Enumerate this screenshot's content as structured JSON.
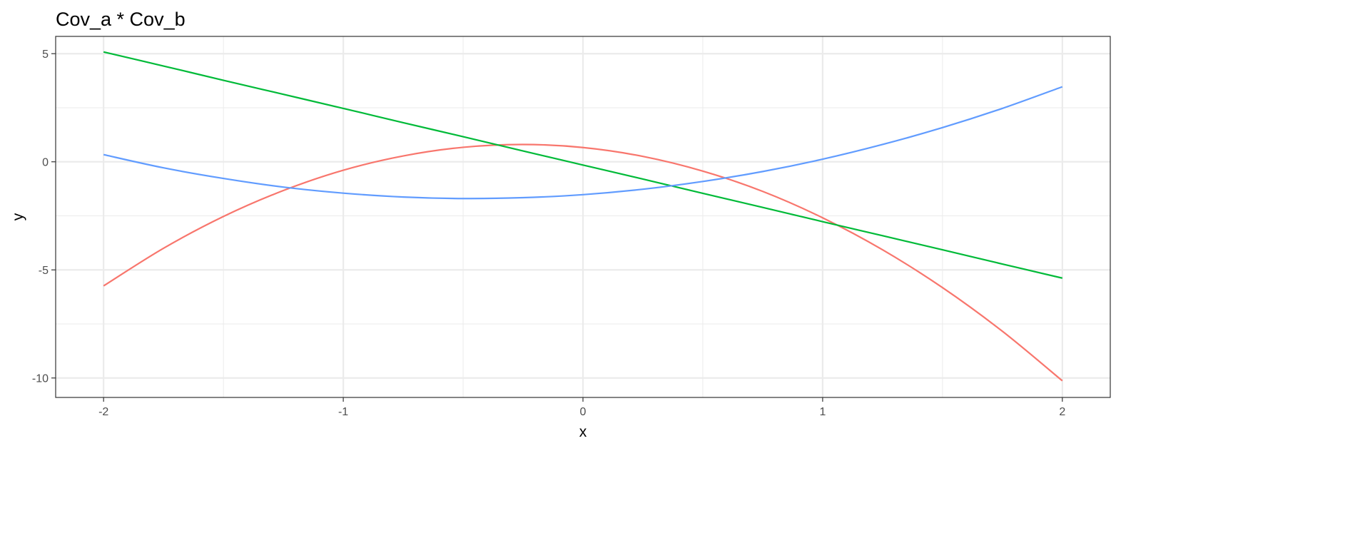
{
  "chart_data": {
    "type": "line",
    "title": "Cov_a * Cov_b",
    "xlabel": "x",
    "ylabel": "y",
    "xlim": [
      -2.2,
      2.2
    ],
    "ylim": [
      -10.9,
      5.8
    ],
    "x_ticks": [
      -2,
      -1,
      0,
      1,
      2
    ],
    "y_ticks": [
      5,
      0,
      -5,
      -10
    ],
    "x_tick_labels": [
      "-2",
      "-1",
      "0",
      "1",
      "2"
    ],
    "y_tick_labels": [
      "5",
      "0",
      "-5",
      "-10"
    ],
    "grid": true,
    "legend": "none",
    "x": [
      -2,
      -1.75,
      -1.5,
      -1.25,
      -1,
      -0.75,
      -0.5,
      -0.25,
      0,
      0.25,
      0.5,
      0.75,
      1,
      1.25,
      1.5,
      1.75,
      2
    ],
    "series": [
      {
        "color": "#F8766D",
        "values": [
          -5.74,
          -4.0,
          -2.53,
          -1.33,
          -0.39,
          0.27,
          0.67,
          0.8,
          0.66,
          0.25,
          -0.43,
          -1.37,
          -2.59,
          -4.07,
          -5.82,
          -7.84,
          -10.13
        ]
      },
      {
        "color": "#00BA38",
        "values": [
          5.08,
          4.43,
          3.77,
          3.12,
          2.47,
          1.81,
          1.16,
          0.5,
          -0.15,
          -0.8,
          -1.46,
          -2.11,
          -2.77,
          -3.42,
          -4.07,
          -4.73,
          -5.38
        ]
      },
      {
        "color": "#619CFF",
        "values": [
          0.33,
          -0.28,
          -0.77,
          -1.17,
          -1.45,
          -1.63,
          -1.7,
          -1.66,
          -1.52,
          -1.27,
          -0.91,
          -0.45,
          0.12,
          0.8,
          1.58,
          2.47,
          3.47
        ]
      }
    ]
  }
}
